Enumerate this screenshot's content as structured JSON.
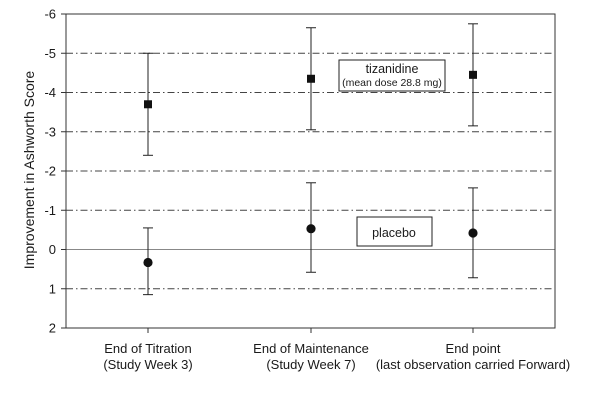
{
  "chart_data": {
    "type": "scatter",
    "ylabel": "Improvement in Ashworth Score",
    "yaxis_inverted": true,
    "ylim": [
      2,
      -6
    ],
    "yticks": [
      "-6",
      "-5",
      "-4",
      "-3",
      "-2",
      "-1",
      "0",
      "1",
      "2"
    ],
    "grid": "horizontal dash-dot",
    "categories": [
      [
        "End of Titration",
        "(Study Week 3)"
      ],
      [
        "End of Maintenance",
        "(Study Week 7)"
      ],
      [
        "End point",
        "(last observation carried Forward)"
      ]
    ],
    "series": [
      {
        "name": "tizanidine",
        "name_detail": "(mean dose 28.8 mg)",
        "marker": "square",
        "values": [
          -3.7,
          -4.35,
          -4.45
        ],
        "error_low": [
          -2.4,
          -3.05,
          -3.15
        ],
        "error_high": [
          -5.0,
          -5.65,
          -5.75
        ]
      },
      {
        "name": "placebo",
        "marker": "circle",
        "values": [
          0.33,
          -0.53,
          -0.42
        ],
        "error_low": [
          1.15,
          0.58,
          0.72
        ],
        "error_high": [
          -0.55,
          -1.7,
          -1.57
        ]
      }
    ]
  }
}
